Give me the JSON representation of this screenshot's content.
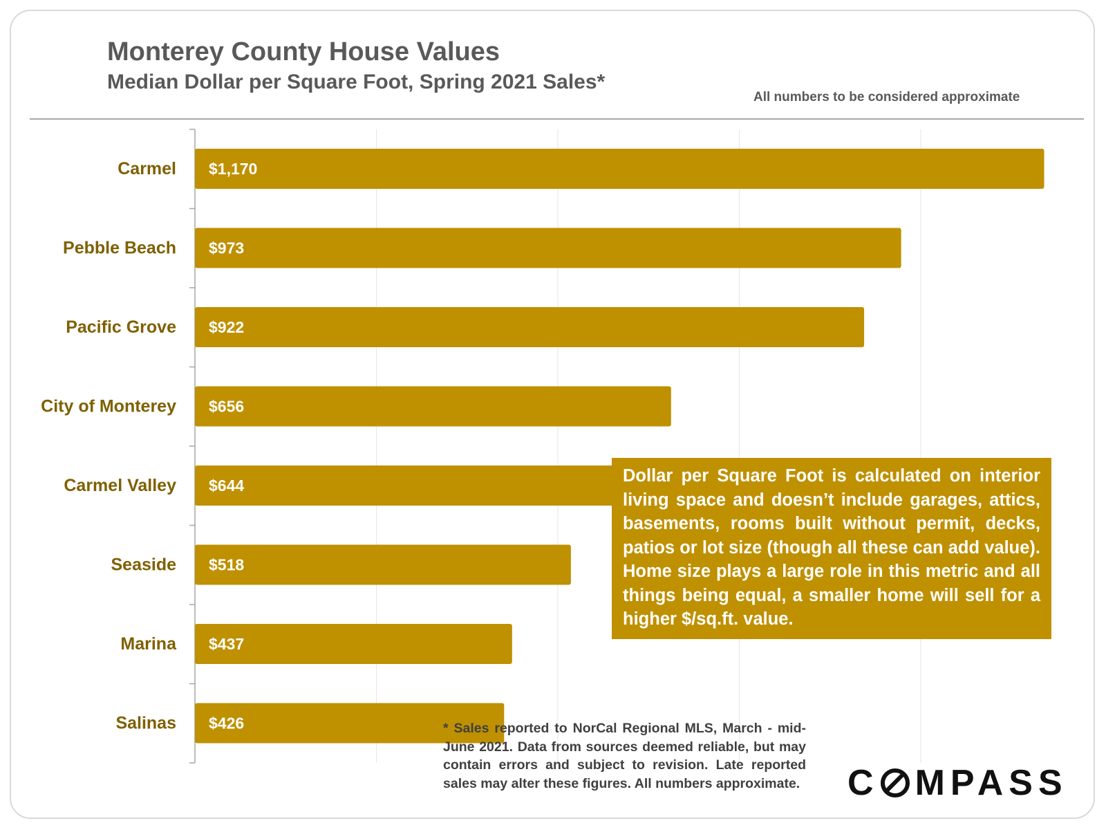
{
  "header": {
    "title": "Monterey County House Values",
    "subtitle": "Median Dollar per Square Foot, Spring 2021 Sales*",
    "note": "All numbers to be considered approximate"
  },
  "callout": {
    "text": "Dollar per Square Foot is calculated on interior living space and doesn’t include garages, attics, basements, rooms built without permit, decks, patios or lot size (though all these can add value). Home size plays a large role in this metric and all things being equal, a smaller home will sell for a higher $/sq.ft. value."
  },
  "footnote": {
    "text": "* Sales reported to NorCal Regional MLS, March - mid-June 2021. Data from sources deemed reliable, but may contain errors and subject to revision. Late reported sales may alter these figures. All numbers approximate."
  },
  "logo": {
    "pre": "C",
    "post": "MPASS"
  },
  "colors": {
    "bar": "#bf9000",
    "label": "#7f6000",
    "grid": "#e6e6e6",
    "axis": "#a6a6a6"
  },
  "chart_data": {
    "type": "bar",
    "orientation": "horizontal",
    "title": "Monterey County House Values",
    "subtitle": "Median Dollar per Square Foot, Spring 2021 Sales*",
    "xlabel": "",
    "ylabel": "",
    "xlim": [
      0,
      1200
    ],
    "grid": true,
    "categories": [
      "Carmel",
      "Pebble Beach",
      "Pacific Grove",
      "City of Monterey",
      "Carmel Valley",
      "Seaside",
      "Marina",
      "Salinas"
    ],
    "values": [
      1170,
      973,
      922,
      656,
      644,
      518,
      437,
      426
    ],
    "value_labels": [
      "$1,170",
      "$973",
      "$922",
      "$656",
      "$644",
      "$518",
      "$437",
      "$426"
    ]
  }
}
